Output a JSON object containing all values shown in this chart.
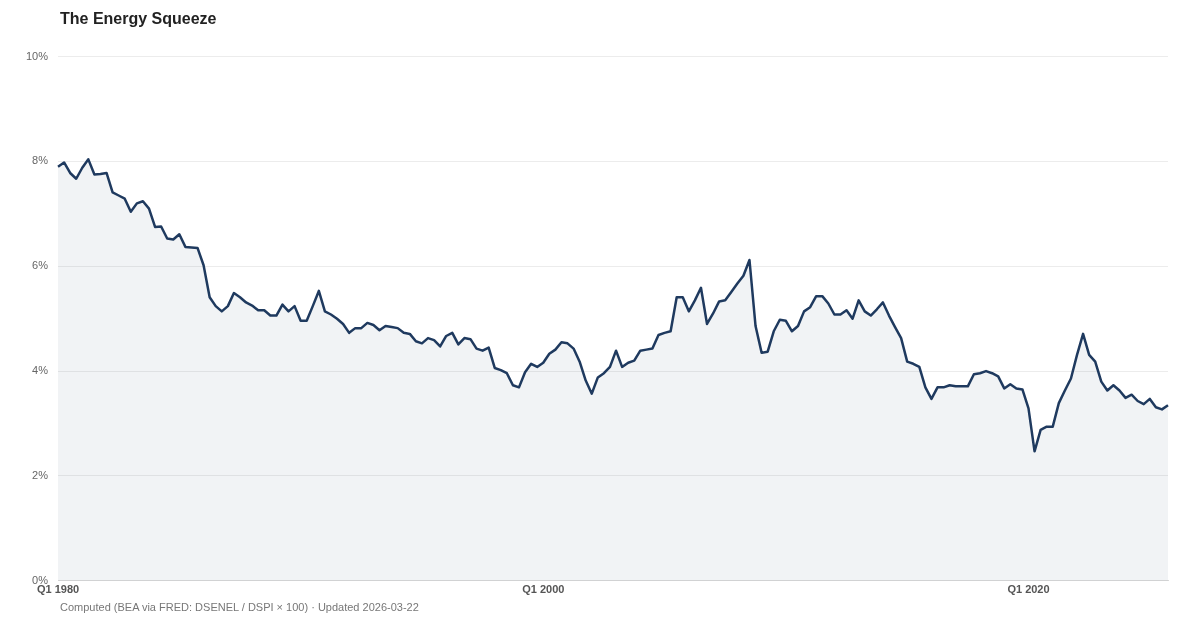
{
  "chart_data": {
    "type": "area",
    "title": "The Energy Squeeze",
    "categories": [
      "Q1 1980",
      null,
      null,
      null,
      null,
      null,
      null,
      null,
      null,
      null,
      null,
      null,
      null,
      null,
      null,
      null,
      null,
      null,
      null,
      null,
      null,
      null,
      null,
      null,
      null,
      null,
      null,
      null,
      null,
      null,
      null,
      null,
      null,
      null,
      null,
      null,
      null,
      null,
      null,
      null,
      null,
      null,
      null,
      null,
      null,
      null,
      null,
      null,
      null,
      null,
      null,
      null,
      null,
      null,
      null,
      null,
      null,
      null,
      null,
      null,
      null,
      null,
      null,
      null,
      null,
      null,
      null,
      null,
      null,
      null,
      null,
      null,
      null,
      null,
      null,
      null,
      null,
      null,
      null,
      null,
      "Q1 2000",
      null,
      null,
      null,
      null,
      null,
      null,
      null,
      null,
      null,
      null,
      null,
      null,
      null,
      null,
      null,
      null,
      null,
      null,
      null,
      null,
      null,
      null,
      null,
      null,
      null,
      null,
      null,
      null,
      null,
      null,
      null,
      null,
      null,
      null,
      null,
      null,
      null,
      null,
      null,
      null,
      null,
      null,
      null,
      null,
      null,
      null,
      null,
      null,
      null,
      null,
      null,
      null,
      null,
      null,
      null,
      null,
      null,
      null,
      null,
      null,
      null,
      null,
      null,
      null,
      null,
      null,
      null,
      null,
      null,
      null,
      null,
      null,
      null,
      null,
      null,
      null,
      null,
      null,
      null,
      "Q1 2020",
      null,
      null,
      null,
      null,
      null,
      null,
      null,
      null,
      null,
      null,
      null,
      null,
      null,
      null,
      null,
      null,
      null,
      null,
      null,
      null,
      null,
      null,
      null
    ],
    "values": [
      7.9,
      7.98,
      7.78,
      7.67,
      7.88,
      8.04,
      7.75,
      7.76,
      7.78,
      7.41,
      7.35,
      7.29,
      7.04,
      7.2,
      7.24,
      7.1,
      6.75,
      6.76,
      6.53,
      6.51,
      6.61,
      6.37,
      6.36,
      6.35,
      6.02,
      5.41,
      5.24,
      5.14,
      5.24,
      5.49,
      5.41,
      5.31,
      5.25,
      5.16,
      5.16,
      5.06,
      5.06,
      5.27,
      5.14,
      5.24,
      4.96,
      4.96,
      5.24,
      5.53,
      5.14,
      5.08,
      5.0,
      4.9,
      4.73,
      4.82,
      4.82,
      4.92,
      4.88,
      4.78,
      4.86,
      4.84,
      4.82,
      4.73,
      4.71,
      4.57,
      4.53,
      4.63,
      4.59,
      4.47,
      4.67,
      4.73,
      4.51,
      4.63,
      4.61,
      4.43,
      4.39,
      4.45,
      4.06,
      4.02,
      3.96,
      3.73,
      3.69,
      3.98,
      4.14,
      4.08,
      4.16,
      4.33,
      4.41,
      4.55,
      4.53,
      4.43,
      4.18,
      3.82,
      3.57,
      3.88,
      3.96,
      4.08,
      4.39,
      4.08,
      4.16,
      4.2,
      4.39,
      4.41,
      4.43,
      4.69,
      4.73,
      4.76,
      5.41,
      5.41,
      5.14,
      5.35,
      5.59,
      4.9,
      5.1,
      5.33,
      5.35,
      5.51,
      5.67,
      5.82,
      6.12,
      4.86,
      4.35,
      4.37,
      4.76,
      4.98,
      4.96,
      4.76,
      4.86,
      5.14,
      5.22,
      5.43,
      5.43,
      5.29,
      5.08,
      5.08,
      5.16,
      5.0,
      5.35,
      5.14,
      5.06,
      5.18,
      5.31,
      5.06,
      4.84,
      4.63,
      4.18,
      4.14,
      4.08,
      3.69,
      3.47,
      3.69,
      3.69,
      3.73,
      3.71,
      3.71,
      3.71,
      3.94,
      3.96,
      4.0,
      3.96,
      3.9,
      3.67,
      3.75,
      3.67,
      3.65,
      3.29,
      2.47,
      2.88,
      2.94,
      2.94,
      3.39,
      3.63,
      3.86,
      4.31,
      4.71,
      4.31,
      4.18,
      3.8,
      3.63,
      3.73,
      3.63,
      3.49,
      3.55,
      3.43,
      3.37,
      3.47,
      3.31,
      3.27,
      3.35
    ],
    "color": "#1f3a5f",
    "ylim": [
      0,
      10
    ],
    "yticks": [
      {
        "value": 0,
        "label": "0%"
      },
      {
        "value": 2,
        "label": "2%"
      },
      {
        "value": 4,
        "label": "4%"
      },
      {
        "value": 6,
        "label": "6%"
      },
      {
        "value": 8,
        "label": "8%"
      },
      {
        "value": 10,
        "label": "10%"
      }
    ],
    "grid": "y",
    "marker": "none",
    "annotations": [
      "Computed (BEA via FRED: DSENEL / DSPI × 100) · Updated 2026-03-22"
    ]
  }
}
